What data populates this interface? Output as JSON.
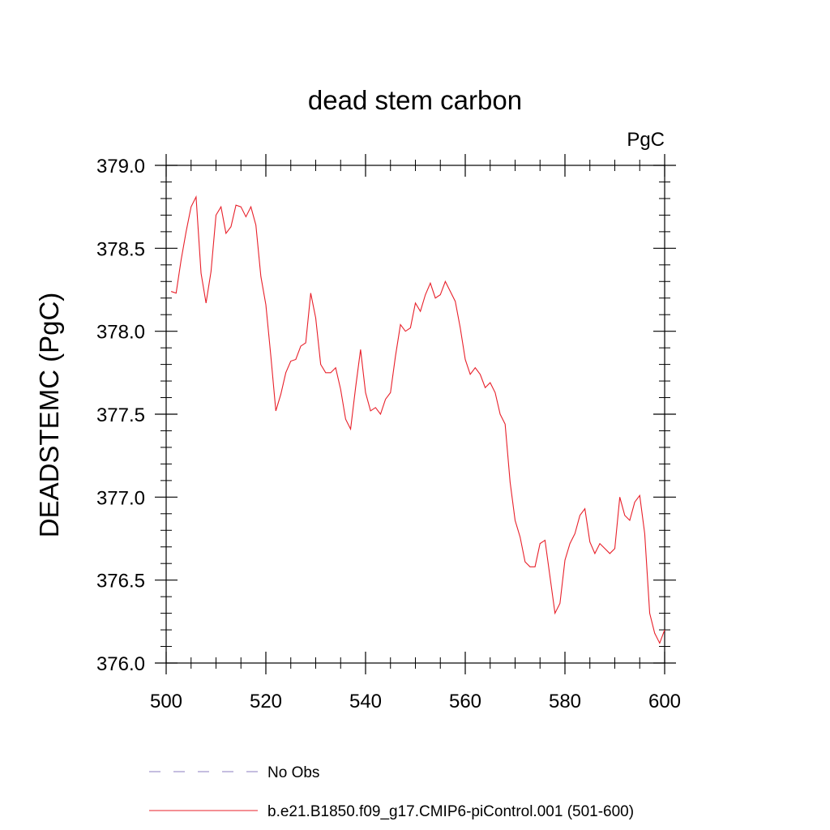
{
  "chart_data": {
    "type": "line",
    "title": "dead stem carbon",
    "units_label": "PgC",
    "ylabel": "DEADSTEMC  (PgC)",
    "xlabel": "",
    "xlim": [
      500,
      600
    ],
    "ylim": [
      376.0,
      379.0
    ],
    "x_ticks": [
      500,
      520,
      540,
      560,
      580,
      600
    ],
    "x_tick_labels": [
      "500",
      "520",
      "540",
      "560",
      "580",
      "600"
    ],
    "y_ticks": [
      376.0,
      376.5,
      377.0,
      377.5,
      378.0,
      378.5,
      379.0
    ],
    "y_tick_labels": [
      "376.0",
      "376.5",
      "377.0",
      "377.5",
      "378.0",
      "378.5",
      "379.0"
    ],
    "grid": false,
    "legend_position": "bottom",
    "series": [
      {
        "name": "b.e21.B1850.f09_g17.CMIP6-piControl.001 (501-600)",
        "color": "#e8202a",
        "style": "solid",
        "x": [
          501,
          502,
          503,
          504,
          505,
          506,
          507,
          508,
          509,
          510,
          511,
          512,
          513,
          514,
          515,
          516,
          517,
          518,
          519,
          520,
          521,
          522,
          523,
          524,
          525,
          526,
          527,
          528,
          529,
          530,
          531,
          532,
          533,
          534,
          535,
          536,
          537,
          538,
          539,
          540,
          541,
          542,
          543,
          544,
          545,
          546,
          547,
          548,
          549,
          550,
          551,
          552,
          553,
          554,
          555,
          556,
          557,
          558,
          559,
          560,
          561,
          562,
          563,
          564,
          565,
          566,
          567,
          568,
          569,
          570,
          571,
          572,
          573,
          574,
          575,
          576,
          577,
          578,
          579,
          580,
          581,
          582,
          583,
          584,
          585,
          586,
          587,
          588,
          589,
          590,
          591,
          592,
          593,
          594,
          595,
          596,
          597,
          598,
          599,
          600
        ],
        "values": [
          378.24,
          378.23,
          378.43,
          378.6,
          378.75,
          378.81,
          378.35,
          378.17,
          378.36,
          378.7,
          378.75,
          378.59,
          378.63,
          378.76,
          378.75,
          378.69,
          378.75,
          378.64,
          378.33,
          378.16,
          377.85,
          377.52,
          377.62,
          377.75,
          377.82,
          377.83,
          377.91,
          377.93,
          378.23,
          378.08,
          377.8,
          377.75,
          377.75,
          377.78,
          377.65,
          377.47,
          377.41,
          377.66,
          377.89,
          377.63,
          377.52,
          377.54,
          377.5,
          377.59,
          377.63,
          377.85,
          378.04,
          378.0,
          378.02,
          378.17,
          378.12,
          378.22,
          378.29,
          378.2,
          378.22,
          378.3,
          378.24,
          378.18,
          378.02,
          377.83,
          377.74,
          377.78,
          377.74,
          377.66,
          377.69,
          377.63,
          377.5,
          377.44,
          377.09,
          376.86,
          376.76,
          376.61,
          376.58,
          376.58,
          376.72,
          376.74,
          376.52,
          376.3,
          376.36,
          376.62,
          376.72,
          376.78,
          376.89,
          376.93,
          376.73,
          376.66,
          376.72,
          376.69,
          376.66,
          376.69,
          377.0,
          376.89,
          376.86,
          376.97,
          377.01,
          376.78,
          376.3,
          376.18,
          376.12,
          376.2
        ]
      },
      {
        "name": "No Obs",
        "color": "#8b7ec0",
        "style": "dashed",
        "x": [],
        "values": []
      }
    ]
  }
}
